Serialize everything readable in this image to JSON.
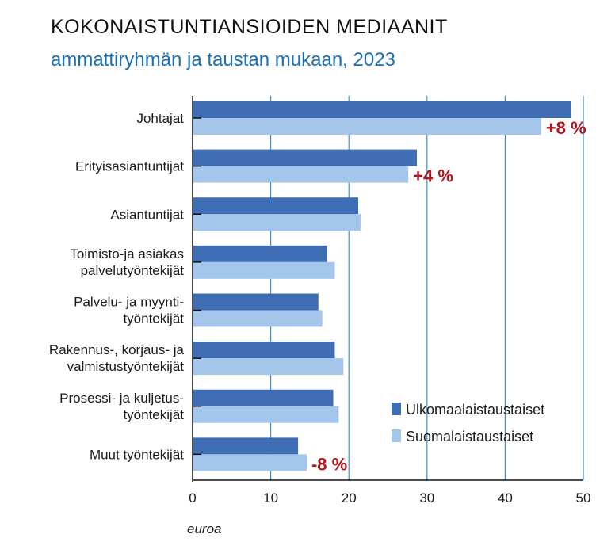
{
  "title": "KOKONAISTUNTIANSIOIDEN MEDIAANIT",
  "subtitle": "ammattiryhmän ja taustan mukaan, 2023",
  "chart_data": {
    "type": "bar",
    "orientation": "horizontal",
    "categories": [
      [
        "Johtajat"
      ],
      [
        "Erityisasiantuntijat"
      ],
      [
        "Asiantuntijat"
      ],
      [
        "Toimisto-ja asiakas",
        "palvelutyöntekijät"
      ],
      [
        "Palvelu- ja myynti-",
        "työntekijät"
      ],
      [
        "Rakennus-, korjaus- ja",
        "valmistustyöntekijät"
      ],
      [
        "Prosessi- ja kuljetus-",
        "työntekijät"
      ],
      [
        "Muut työntekijät"
      ]
    ],
    "series": [
      {
        "name": "Ulkomaalaistaustaiset",
        "color": "#3f6db4",
        "values": [
          48.4,
          28.7,
          21.2,
          17.2,
          16.1,
          18.2,
          18.0,
          13.5
        ]
      },
      {
        "name": "Suomalaistaustaiset",
        "color": "#a4c6ea",
        "values": [
          44.6,
          27.6,
          21.5,
          18.2,
          16.6,
          19.3,
          18.7,
          14.6
        ]
      }
    ],
    "annotations": [
      {
        "category_index": 0,
        "text": "+8 %"
      },
      {
        "category_index": 1,
        "text": "+4 %"
      },
      {
        "category_index": 7,
        "text": "-8 %"
      }
    ],
    "annotation_color": "#b3161c",
    "xlabel": "euroa",
    "ylabel": "",
    "xlim": [
      0,
      50
    ],
    "xticks": [
      0,
      10,
      20,
      30,
      40,
      50
    ],
    "grid": true,
    "grid_color": "#3a8fd0",
    "legend_position": "bottom-right"
  }
}
